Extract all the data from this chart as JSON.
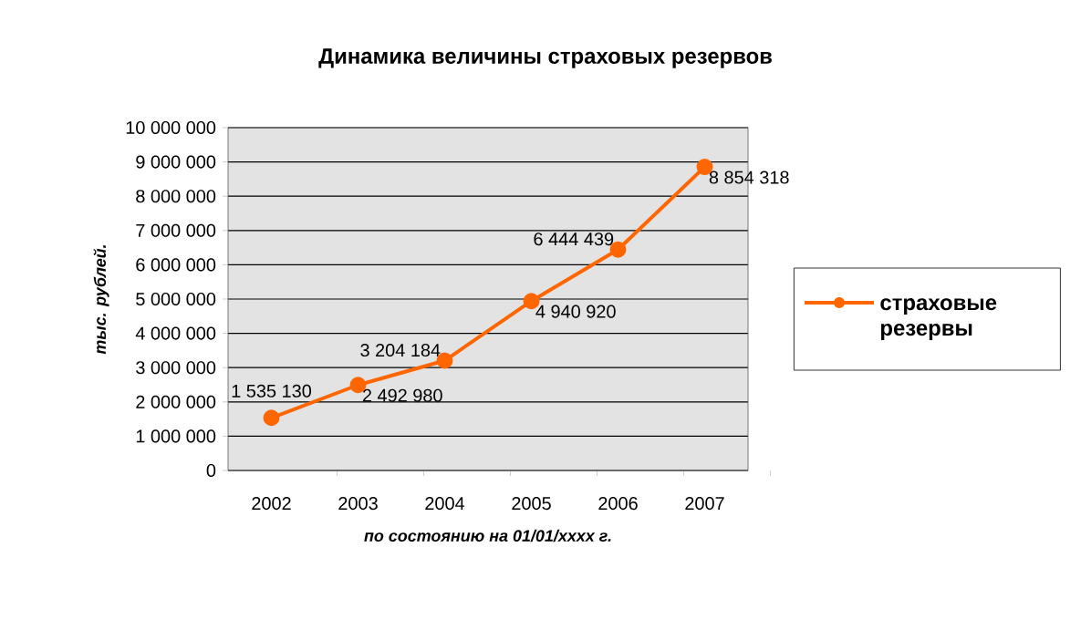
{
  "chart_data": {
    "type": "line",
    "title": "Динамика величины страховых резервов",
    "xlabel": "по состоянию на 01/01/xxxx г.",
    "ylabel": "тыс. рублей.",
    "categories": [
      "2002",
      "2003",
      "2004",
      "2005",
      "2006",
      "2007"
    ],
    "series": [
      {
        "name": "страховые резервы",
        "color": "#ff6600",
        "values": [
          1535130,
          2492980,
          3204184,
          4940920,
          6444439,
          8854318
        ],
        "value_labels": [
          "1 535 130",
          "2 492 980",
          "3 204 184",
          "4 940 920",
          "6 444 439",
          "8 854 318"
        ]
      }
    ],
    "ylim": [
      0,
      10000000
    ],
    "yticks": [
      {
        "value": 0,
        "label": "0"
      },
      {
        "value": 1000000,
        "label": "1 000 000"
      },
      {
        "value": 2000000,
        "label": "2 000 000"
      },
      {
        "value": 3000000,
        "label": "3 000 000"
      },
      {
        "value": 4000000,
        "label": "4 000 000"
      },
      {
        "value": 5000000,
        "label": "5 000 000"
      },
      {
        "value": 6000000,
        "label": "6 000 000"
      },
      {
        "value": 7000000,
        "label": "7 000 000"
      },
      {
        "value": 8000000,
        "label": "8 000 000"
      },
      {
        "value": 9000000,
        "label": "9 000 000"
      },
      {
        "value": 10000000,
        "label": "10 000 000"
      }
    ],
    "grid": "y",
    "legend": "right",
    "marker": "circle",
    "line_style": "solid"
  }
}
